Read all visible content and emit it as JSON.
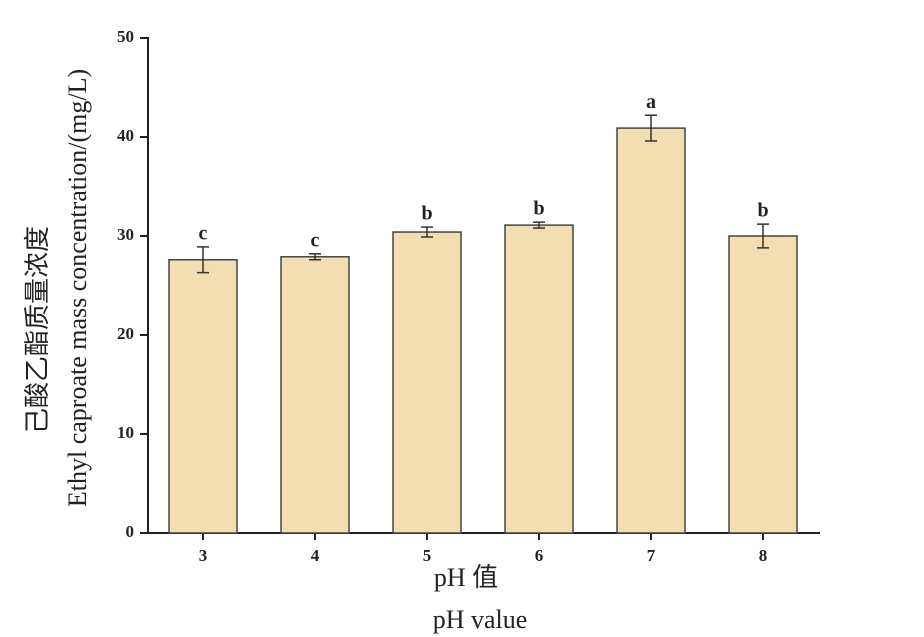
{
  "chart_data": {
    "type": "bar",
    "x_label_cn": "pH 值",
    "x_label": "pH  value",
    "y_label_cn": "己酸乙酯质量浓度",
    "y_label": "Ethyl caproate mass concentration/(mg/L)",
    "categories": [
      "3",
      "4",
      "5",
      "6",
      "7",
      "8"
    ],
    "values": [
      27.6,
      27.9,
      30.4,
      31.1,
      40.9,
      30.0
    ],
    "errors": [
      1.3,
      0.3,
      0.5,
      0.3,
      1.3,
      1.2
    ],
    "annotations": [
      "c",
      "c",
      "b",
      "b",
      "a",
      "b"
    ],
    "color": "#f3deb4",
    "ylim": [
      0,
      50
    ],
    "yticks": [
      0,
      10,
      20,
      30,
      40,
      50
    ]
  }
}
